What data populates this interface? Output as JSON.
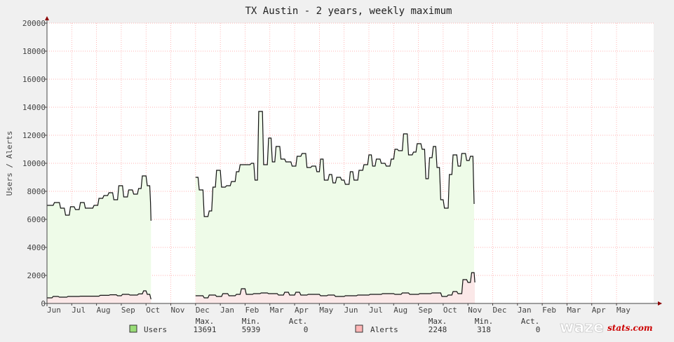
{
  "chart_data": {
    "type": "area",
    "title": "TX Austin - 2 years, weekly maximum",
    "ylabel": "Users / Alerts",
    "ylim": [
      0,
      20000
    ],
    "yticks": [
      0,
      2000,
      4000,
      6000,
      8000,
      10000,
      12000,
      14000,
      16000,
      18000,
      20000
    ],
    "x_months": [
      "Jun",
      "Jul",
      "Aug",
      "Sep",
      "Oct",
      "Nov",
      "Dec",
      "Jan",
      "Feb",
      "Mar",
      "Apr",
      "May",
      "Jun",
      "Jul",
      "Aug",
      "Sep",
      "Oct",
      "Nov",
      "Dec",
      "Jan",
      "Feb",
      "Mar",
      "Apr",
      "May"
    ],
    "x_range_months": [
      0,
      24.5
    ],
    "grid": true,
    "series": [
      {
        "name": "Users",
        "color": "#99dd77",
        "fill": "#eefbe8",
        "segments": [
          [
            [
              0.0,
              7000
            ],
            [
              0.25,
              7000
            ],
            [
              0.3,
              7200
            ],
            [
              0.5,
              7200
            ],
            [
              0.55,
              6800
            ],
            [
              0.7,
              6800
            ],
            [
              0.75,
              6300
            ],
            [
              0.9,
              6300
            ],
            [
              0.95,
              6900
            ],
            [
              1.1,
              6900
            ],
            [
              1.15,
              6700
            ],
            [
              1.3,
              6700
            ],
            [
              1.35,
              7200
            ],
            [
              1.5,
              7200
            ],
            [
              1.55,
              6800
            ],
            [
              1.85,
              6800
            ],
            [
              1.9,
              7000
            ],
            [
              2.05,
              7000
            ],
            [
              2.1,
              7500
            ],
            [
              2.25,
              7500
            ],
            [
              2.3,
              7700
            ],
            [
              2.45,
              7700
            ],
            [
              2.5,
              7900
            ],
            [
              2.65,
              7900
            ],
            [
              2.7,
              7400
            ],
            [
              2.85,
              7400
            ],
            [
              2.9,
              8400
            ],
            [
              3.05,
              8400
            ],
            [
              3.1,
              7600
            ],
            [
              3.25,
              7600
            ],
            [
              3.3,
              8100
            ],
            [
              3.45,
              8100
            ],
            [
              3.5,
              7800
            ],
            [
              3.65,
              7800
            ],
            [
              3.7,
              8200
            ],
            [
              3.8,
              8200
            ],
            [
              3.85,
              9100
            ],
            [
              4.0,
              9100
            ],
            [
              4.05,
              8400
            ],
            [
              4.15,
              8400
            ],
            [
              4.18,
              7200
            ],
            [
              4.2,
              5900
            ]
          ],
          [
            [
              6.0,
              9000
            ],
            [
              6.1,
              9000
            ],
            [
              6.15,
              8100
            ],
            [
              6.3,
              8100
            ],
            [
              6.35,
              6200
            ],
            [
              6.5,
              6200
            ],
            [
              6.55,
              6600
            ],
            [
              6.65,
              6600
            ],
            [
              6.7,
              8300
            ],
            [
              6.8,
              8300
            ],
            [
              6.85,
              9500
            ],
            [
              7.0,
              9500
            ],
            [
              7.05,
              8300
            ],
            [
              7.2,
              8300
            ],
            [
              7.25,
              8400
            ],
            [
              7.4,
              8400
            ],
            [
              7.45,
              8700
            ],
            [
              7.6,
              8700
            ],
            [
              7.65,
              9400
            ],
            [
              7.75,
              9400
            ],
            [
              7.8,
              9900
            ],
            [
              8.2,
              9900
            ],
            [
              8.25,
              10000
            ],
            [
              8.35,
              10000
            ],
            [
              8.4,
              8800
            ],
            [
              8.5,
              8800
            ],
            [
              8.55,
              13700
            ],
            [
              8.7,
              13700
            ],
            [
              8.75,
              9900
            ],
            [
              8.9,
              9900
            ],
            [
              8.95,
              11800
            ],
            [
              9.05,
              11800
            ],
            [
              9.1,
              10100
            ],
            [
              9.2,
              10100
            ],
            [
              9.25,
              11200
            ],
            [
              9.4,
              11200
            ],
            [
              9.45,
              10300
            ],
            [
              9.6,
              10300
            ],
            [
              9.65,
              10100
            ],
            [
              9.85,
              10100
            ],
            [
              9.9,
              9800
            ],
            [
              10.05,
              9800
            ],
            [
              10.1,
              10500
            ],
            [
              10.25,
              10500
            ],
            [
              10.3,
              10700
            ],
            [
              10.45,
              10700
            ],
            [
              10.5,
              9700
            ],
            [
              10.65,
              9700
            ],
            [
              10.7,
              9800
            ],
            [
              10.85,
              9800
            ],
            [
              10.9,
              9400
            ],
            [
              11.0,
              9400
            ],
            [
              11.05,
              10300
            ],
            [
              11.15,
              10300
            ],
            [
              11.2,
              8800
            ],
            [
              11.35,
              8800
            ],
            [
              11.4,
              9200
            ],
            [
              11.5,
              9200
            ],
            [
              11.55,
              8600
            ],
            [
              11.65,
              8600
            ],
            [
              11.7,
              9000
            ],
            [
              11.85,
              9000
            ],
            [
              11.9,
              8800
            ],
            [
              12.0,
              8800
            ],
            [
              12.05,
              8500
            ],
            [
              12.2,
              8500
            ],
            [
              12.25,
              9400
            ],
            [
              12.35,
              9400
            ],
            [
              12.4,
              8800
            ],
            [
              12.55,
              8800
            ],
            [
              12.6,
              9500
            ],
            [
              12.75,
              9500
            ],
            [
              12.8,
              9900
            ],
            [
              12.95,
              9900
            ],
            [
              13.0,
              10600
            ],
            [
              13.1,
              10600
            ],
            [
              13.15,
              9800
            ],
            [
              13.25,
              9800
            ],
            [
              13.3,
              10300
            ],
            [
              13.45,
              10300
            ],
            [
              13.5,
              10000
            ],
            [
              13.65,
              10000
            ],
            [
              13.7,
              9800
            ],
            [
              13.85,
              9800
            ],
            [
              13.9,
              10300
            ],
            [
              14.0,
              10300
            ],
            [
              14.05,
              11000
            ],
            [
              14.15,
              11000
            ],
            [
              14.2,
              10900
            ],
            [
              14.35,
              10900
            ],
            [
              14.4,
              12100
            ],
            [
              14.55,
              12100
            ],
            [
              14.6,
              10600
            ],
            [
              14.75,
              10600
            ],
            [
              14.8,
              10800
            ],
            [
              14.9,
              10800
            ],
            [
              14.95,
              11400
            ],
            [
              15.1,
              11400
            ],
            [
              15.15,
              11000
            ],
            [
              15.25,
              11000
            ],
            [
              15.3,
              8900
            ],
            [
              15.4,
              8900
            ],
            [
              15.45,
              10400
            ],
            [
              15.55,
              10400
            ],
            [
              15.6,
              11200
            ],
            [
              15.7,
              11200
            ],
            [
              15.75,
              9700
            ],
            [
              15.85,
              9700
            ],
            [
              15.9,
              7400
            ],
            [
              16.0,
              7400
            ],
            [
              16.05,
              6800
            ],
            [
              16.2,
              6800
            ],
            [
              16.25,
              9200
            ],
            [
              16.35,
              9200
            ],
            [
              16.4,
              10600
            ],
            [
              16.55,
              10600
            ],
            [
              16.6,
              9800
            ],
            [
              16.7,
              9800
            ],
            [
              16.75,
              10700
            ],
            [
              16.9,
              10700
            ],
            [
              16.95,
              10200
            ],
            [
              17.05,
              10200
            ],
            [
              17.1,
              10500
            ],
            [
              17.2,
              10500
            ],
            [
              17.25,
              7100
            ]
          ]
        ]
      },
      {
        "name": "Alerts",
        "color": "#dd7777",
        "fill": "#fbe8e8",
        "segments": [
          [
            [
              0.0,
              400
            ],
            [
              0.2,
              400
            ],
            [
              0.25,
              500
            ],
            [
              0.45,
              500
            ],
            [
              0.5,
              450
            ],
            [
              0.8,
              450
            ],
            [
              0.85,
              500
            ],
            [
              1.3,
              500
            ],
            [
              1.35,
              520
            ],
            [
              2.1,
              520
            ],
            [
              2.15,
              580
            ],
            [
              2.5,
              580
            ],
            [
              2.55,
              620
            ],
            [
              2.8,
              620
            ],
            [
              2.85,
              550
            ],
            [
              3.0,
              550
            ],
            [
              3.05,
              650
            ],
            [
              3.3,
              650
            ],
            [
              3.35,
              600
            ],
            [
              3.65,
              600
            ],
            [
              3.7,
              680
            ],
            [
              3.85,
              680
            ],
            [
              3.9,
              900
            ],
            [
              4.0,
              900
            ],
            [
              4.05,
              650
            ],
            [
              4.15,
              650
            ],
            [
              4.2,
              300
            ]
          ],
          [
            [
              6.0,
              550
            ],
            [
              6.3,
              550
            ],
            [
              6.35,
              400
            ],
            [
              6.5,
              400
            ],
            [
              6.55,
              600
            ],
            [
              6.8,
              600
            ],
            [
              6.85,
              500
            ],
            [
              7.05,
              500
            ],
            [
              7.1,
              700
            ],
            [
              7.3,
              700
            ],
            [
              7.35,
              550
            ],
            [
              7.6,
              550
            ],
            [
              7.65,
              650
            ],
            [
              7.8,
              650
            ],
            [
              7.85,
              1050
            ],
            [
              8.0,
              1050
            ],
            [
              8.05,
              650
            ],
            [
              8.3,
              650
            ],
            [
              8.35,
              700
            ],
            [
              8.6,
              700
            ],
            [
              8.65,
              750
            ],
            [
              8.9,
              750
            ],
            [
              8.95,
              700
            ],
            [
              9.3,
              700
            ],
            [
              9.35,
              600
            ],
            [
              9.55,
              600
            ],
            [
              9.6,
              800
            ],
            [
              9.75,
              800
            ],
            [
              9.8,
              600
            ],
            [
              10.0,
              600
            ],
            [
              10.05,
              800
            ],
            [
              10.2,
              800
            ],
            [
              10.25,
              600
            ],
            [
              10.5,
              600
            ],
            [
              10.55,
              650
            ],
            [
              11.0,
              650
            ],
            [
              11.05,
              550
            ],
            [
              11.3,
              550
            ],
            [
              11.35,
              600
            ],
            [
              11.6,
              600
            ],
            [
              11.65,
              500
            ],
            [
              12.0,
              500
            ],
            [
              12.05,
              550
            ],
            [
              12.5,
              550
            ],
            [
              12.55,
              600
            ],
            [
              13.0,
              600
            ],
            [
              13.05,
              650
            ],
            [
              13.5,
              650
            ],
            [
              13.55,
              700
            ],
            [
              14.0,
              700
            ],
            [
              14.05,
              650
            ],
            [
              14.3,
              650
            ],
            [
              14.35,
              750
            ],
            [
              14.6,
              750
            ],
            [
              14.65,
              650
            ],
            [
              15.0,
              650
            ],
            [
              15.05,
              700
            ],
            [
              15.5,
              700
            ],
            [
              15.55,
              750
            ],
            [
              15.9,
              750
            ],
            [
              15.95,
              500
            ],
            [
              16.15,
              500
            ],
            [
              16.2,
              600
            ],
            [
              16.35,
              600
            ],
            [
              16.4,
              850
            ],
            [
              16.55,
              850
            ],
            [
              16.6,
              700
            ],
            [
              16.75,
              700
            ],
            [
              16.8,
              1700
            ],
            [
              16.95,
              1700
            ],
            [
              17.0,
              1500
            ],
            [
              17.1,
              1500
            ],
            [
              17.15,
              2200
            ],
            [
              17.25,
              2200
            ],
            [
              17.28,
              1500
            ]
          ]
        ]
      }
    ],
    "legend": [
      {
        "name": "Users",
        "max": "13691",
        "min": "5939",
        "act": "0"
      },
      {
        "name": "Alerts",
        "max": "2248",
        "min": "318",
        "act": "0"
      }
    ],
    "legend_headers": {
      "max": "Max.",
      "min": "Min.",
      "act": "Act."
    }
  },
  "branding": {
    "logo_text": "waze",
    "logo_suffix": "stats.com"
  }
}
